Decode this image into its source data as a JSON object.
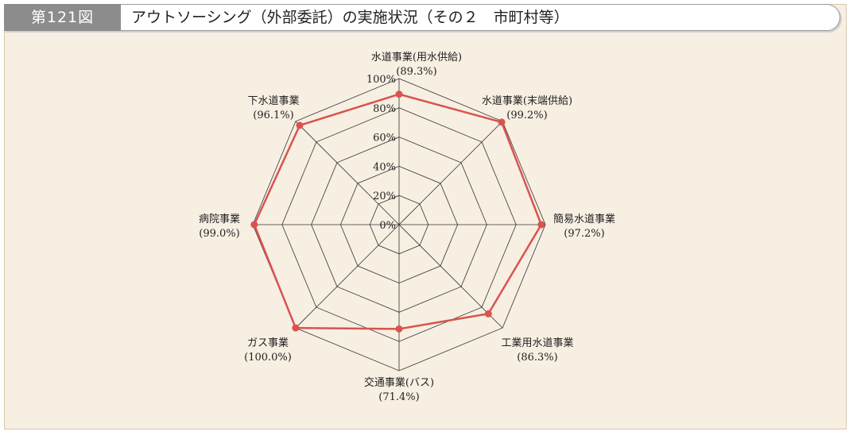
{
  "figure": {
    "number_label": "第121図",
    "title": "アウトソーシング（外部委託）の実施状況（その２　市町村等）"
  },
  "colors": {
    "series": "#d9534f",
    "grid": "#333333",
    "background": "#f7efe2"
  },
  "chart_data": {
    "type": "radar",
    "title": "アウトソーシング（外部委託）の実施状況（その２　市町村等）",
    "categories": [
      "水道事業(用水供給)",
      "水道事業(末端供給)",
      "簡易水道事業",
      "工業用水道事業",
      "交通事業(バス)",
      "ガス事業",
      "病院事業",
      "下水道事業"
    ],
    "value_labels": [
      "(89.3%)",
      "(99.2%)",
      "(97.2%)",
      "(86.3%)",
      "(71.4%)",
      "(100.0%)",
      "(99.0%)",
      "(96.1%)"
    ],
    "values": [
      89.3,
      99.2,
      97.2,
      86.3,
      71.4,
      100.0,
      99.0,
      96.1
    ],
    "range": [
      0,
      100
    ],
    "ticks": [
      "0%",
      "20%",
      "40%",
      "60%",
      "80%",
      "100%"
    ],
    "tick_values": [
      0,
      20,
      40,
      60,
      80,
      100
    ],
    "grid": true,
    "legend": "none"
  }
}
